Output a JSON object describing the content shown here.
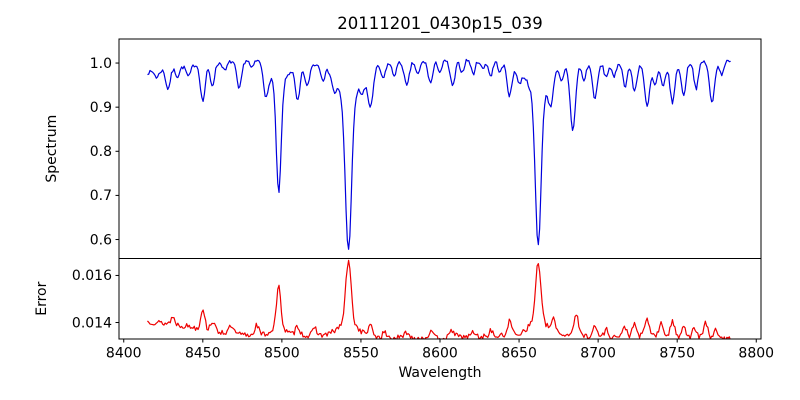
{
  "window": {
    "title": "20111201_0430p15_039"
  },
  "chart_data": {
    "type": "line",
    "title": "20111201_0430p15_039",
    "xlabel": "Wavelength",
    "grid": false,
    "legend": "none",
    "x_data_range": [
      8415,
      8784
    ],
    "xlim": [
      8397,
      8803
    ],
    "xticks": [
      8400,
      8450,
      8500,
      8550,
      8600,
      8650,
      8700,
      8750,
      8800
    ],
    "xtick_labels": [
      "8400",
      "8450",
      "8500",
      "8550",
      "8600",
      "8650",
      "8700",
      "8750",
      "8800"
    ],
    "sample_step_angstrom": 0.8,
    "subplots": [
      {
        "name": "spectrum",
        "ylabel": "Spectrum",
        "line_color": "#0000dd",
        "ylim": [
          0.557,
          1.0545
        ],
        "yticks": [
          0.6,
          0.7,
          0.8,
          0.9,
          1.0
        ],
        "ytick_labels": [
          "0.6",
          "0.7",
          "0.8",
          "0.9",
          "1.0"
        ],
        "noise_amplitude": 0.0042,
        "noise_seed": 7,
        "continuum_points": [
          [
            8415,
            0.978
          ],
          [
            8425,
            0.985
          ],
          [
            8435,
            0.99
          ],
          [
            8448,
            0.998
          ],
          [
            8460,
            1.0
          ],
          [
            8472,
            1.005
          ],
          [
            8482,
            1.008
          ],
          [
            8492,
            1.002
          ],
          [
            8502,
            0.996
          ],
          [
            8512,
            0.995
          ],
          [
            8522,
            0.998
          ],
          [
            8532,
            1.0
          ],
          [
            8545,
            1.0
          ],
          [
            8558,
            0.998
          ],
          [
            8570,
            1.0
          ],
          [
            8582,
            1.003
          ],
          [
            8595,
            1.005
          ],
          [
            8608,
            1.005
          ],
          [
            8618,
            1.008
          ],
          [
            8630,
            1.006
          ],
          [
            8642,
            1.003
          ],
          [
            8655,
            1.0
          ],
          [
            8668,
            0.996
          ],
          [
            8680,
            0.998
          ],
          [
            8692,
            1.0
          ],
          [
            8704,
            1.0
          ],
          [
            8716,
            1.003
          ],
          [
            8728,
            1.0
          ],
          [
            8740,
            1.0
          ],
          [
            8752,
            1.002
          ],
          [
            8764,
            1.003
          ],
          [
            8775,
            1.005
          ],
          [
            8784,
            1.002
          ]
        ],
        "absorption_lines_format": [
          "center_angstrom",
          "depth",
          "sigma_angstrom"
        ],
        "absorption_lines": [
          [
            8421,
            0.015,
            1.2
          ],
          [
            8428,
            0.045,
            1.4
          ],
          [
            8434,
            0.02,
            1.2
          ],
          [
            8441,
            0.025,
            1.3
          ],
          [
            8450,
            0.085,
            1.5
          ],
          [
            8456,
            0.05,
            1.4
          ],
          [
            8464,
            0.02,
            1.2
          ],
          [
            8473,
            0.065,
            1.5
          ],
          [
            8481,
            0.02,
            1.2
          ],
          [
            8490,
            0.07,
            1.5
          ],
          [
            8498.0,
            0.25,
            1.5
          ],
          [
            8498.0,
            0.045,
            5.0
          ],
          [
            8510,
            0.08,
            1.5
          ],
          [
            8516,
            0.05,
            1.4
          ],
          [
            8526,
            0.03,
            1.3
          ],
          [
            8533,
            0.03,
            1.3
          ],
          [
            8542.1,
            0.34,
            1.9
          ],
          [
            8542.1,
            0.085,
            7.0
          ],
          [
            8551,
            0.03,
            1.3
          ],
          [
            8556,
            0.085,
            1.8
          ],
          [
            8564,
            0.035,
            1.3
          ],
          [
            8571,
            0.028,
            1.3
          ],
          [
            8579,
            0.055,
            1.5
          ],
          [
            8586,
            0.03,
            1.3
          ],
          [
            8594,
            0.05,
            1.5
          ],
          [
            8600,
            0.025,
            1.2
          ],
          [
            8608,
            0.058,
            1.5
          ],
          [
            8614,
            0.028,
            1.2
          ],
          [
            8621,
            0.032,
            1.3
          ],
          [
            8627,
            0.02,
            1.2
          ],
          [
            8632,
            0.035,
            1.3
          ],
          [
            8638,
            0.025,
            1.2
          ],
          [
            8644,
            0.075,
            1.6
          ],
          [
            8650,
            0.035,
            1.4
          ],
          [
            8662.1,
            0.335,
            1.8
          ],
          [
            8662.1,
            0.075,
            6.5
          ],
          [
            8670,
            0.06,
            1.4
          ],
          [
            8677,
            0.035,
            1.3
          ],
          [
            8684,
            0.15,
            1.7
          ],
          [
            8691,
            0.04,
            1.3
          ],
          [
            8698,
            0.08,
            1.6
          ],
          [
            8705,
            0.032,
            1.3
          ],
          [
            8710,
            0.035,
            1.3
          ],
          [
            8717,
            0.055,
            1.4
          ],
          [
            8723,
            0.065,
            1.5
          ],
          [
            8731,
            0.1,
            1.6
          ],
          [
            8736,
            0.05,
            1.4
          ],
          [
            8741,
            0.055,
            1.4
          ],
          [
            8747,
            0.09,
            1.6
          ],
          [
            8754,
            0.075,
            1.5
          ],
          [
            8762,
            0.06,
            1.4
          ],
          [
            8772,
            0.095,
            1.6
          ],
          [
            8778,
            0.03,
            1.2
          ]
        ]
      },
      {
        "name": "error",
        "ylabel": "Error",
        "line_color": "#ee0000",
        "ylim": [
          0.0133,
          0.01672
        ],
        "yticks": [
          0.014,
          0.016
        ],
        "ytick_labels": [
          "0.014",
          "0.016"
        ],
        "noise_amplitude": 0.00012,
        "noise_seed": 13,
        "baseline_points": [
          [
            8415,
            0.01405
          ],
          [
            8428,
            0.01395
          ],
          [
            8440,
            0.01385
          ],
          [
            8452,
            0.0137
          ],
          [
            8462,
            0.0136
          ],
          [
            8472,
            0.0135
          ],
          [
            8482,
            0.01345
          ],
          [
            8495,
            0.0135
          ],
          [
            8510,
            0.01345
          ],
          [
            8525,
            0.01345
          ],
          [
            8540,
            0.0135
          ],
          [
            8555,
            0.0134
          ],
          [
            8570,
            0.01335
          ],
          [
            8585,
            0.01335
          ],
          [
            8600,
            0.01335
          ],
          [
            8615,
            0.0134
          ],
          [
            8630,
            0.0134
          ],
          [
            8645,
            0.01345
          ],
          [
            8660,
            0.0136
          ],
          [
            8675,
            0.0135
          ],
          [
            8690,
            0.01345
          ],
          [
            8705,
            0.0134
          ],
          [
            8720,
            0.0134
          ],
          [
            8735,
            0.01345
          ],
          [
            8750,
            0.0134
          ],
          [
            8762,
            0.01335
          ],
          [
            8775,
            0.01335
          ],
          [
            8784,
            0.0133
          ]
        ],
        "peaks_format": [
          "center_angstrom",
          "amplitude",
          "sigma_angstrom"
        ],
        "peaks": [
          [
            8431,
            0.0003,
            1.3
          ],
          [
            8450,
            0.0009,
            1.2
          ],
          [
            8456,
            0.0004,
            1.3
          ],
          [
            8468,
            0.0003,
            1.3
          ],
          [
            8484,
            0.00045,
            1.3
          ],
          [
            8498,
            0.0017,
            1.4
          ],
          [
            8498,
            0.0003,
            4.0
          ],
          [
            8510,
            0.0004,
            1.4
          ],
          [
            8521,
            0.0003,
            1.3
          ],
          [
            8542.1,
            0.0026,
            1.7
          ],
          [
            8542.1,
            0.0005,
            6.0
          ],
          [
            8556,
            0.0004,
            1.5
          ],
          [
            8565,
            0.0002,
            1.3
          ],
          [
            8579,
            0.00025,
            1.3
          ],
          [
            8594,
            0.00025,
            1.3
          ],
          [
            8608,
            0.0003,
            1.3
          ],
          [
            8621,
            0.0002,
            1.2
          ],
          [
            8632,
            0.00025,
            1.2
          ],
          [
            8644,
            0.0006,
            1.4
          ],
          [
            8662.1,
            0.0025,
            1.6
          ],
          [
            8662.1,
            0.0005,
            5.5
          ],
          [
            8672,
            0.0005,
            1.4
          ],
          [
            8686,
            0.0009,
            1.4
          ],
          [
            8698,
            0.0004,
            1.3
          ],
          [
            8705,
            0.0003,
            1.2
          ],
          [
            8717,
            0.0004,
            1.3
          ],
          [
            8723,
            0.0005,
            1.3
          ],
          [
            8731,
            0.0007,
            1.4
          ],
          [
            8740,
            0.0005,
            1.3
          ],
          [
            8747,
            0.0006,
            1.4
          ],
          [
            8754,
            0.0005,
            1.3
          ],
          [
            8761,
            0.0004,
            1.3
          ],
          [
            8768,
            0.0006,
            1.4
          ],
          [
            8774,
            0.0003,
            1.2
          ]
        ]
      }
    ]
  }
}
